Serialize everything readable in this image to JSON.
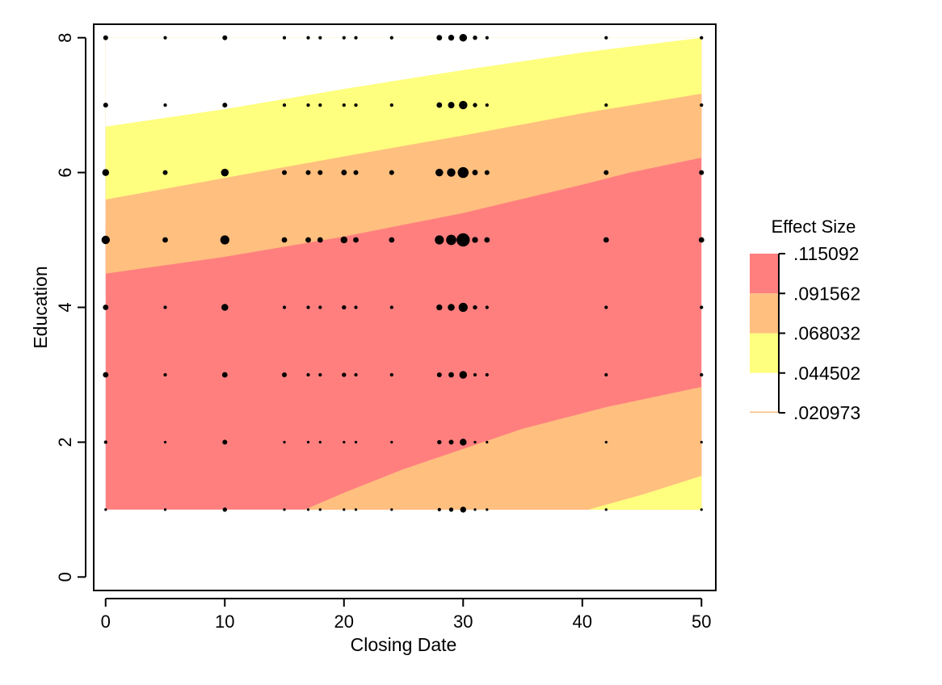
{
  "chart_data": {
    "type": "contour",
    "xlabel": "Closing Date",
    "ylabel": "Education",
    "xlim": [
      -1,
      51.2
    ],
    "ylim": [
      -0.2,
      8.2
    ],
    "xticks": [
      0,
      10,
      20,
      30,
      40,
      50
    ],
    "yticks": [
      0,
      2,
      4,
      6,
      8
    ],
    "grid": false,
    "legend": {
      "title": "Effect Size",
      "placement": "right",
      "cutpoints": [
        ".115092",
        ".091562",
        ".068032",
        ".044502",
        ".020973"
      ],
      "colors": [
        "#ff7f7f",
        "#ffbf7f",
        "#ffff7f",
        "#ffffff"
      ]
    },
    "contour_bands": [
      {
        "range": [
          0.020973,
          0.044502
        ],
        "color": "#ffffff"
      },
      {
        "range": [
          0.044502,
          0.068032
        ],
        "color": "#ffff7f"
      },
      {
        "range": [
          0.068032,
          0.091562
        ],
        "color": "#ffbf7f"
      },
      {
        "range": [
          0.091562,
          0.115092
        ],
        "color": "#ff7f7f"
      }
    ],
    "contour_lines": {
      "upper_044502": [
        [
          0,
          6.68
        ],
        [
          10,
          6.94
        ],
        [
          20,
          7.24
        ],
        [
          30,
          7.52
        ],
        [
          40,
          7.78
        ],
        [
          50,
          8.0
        ]
      ],
      "upper_068032": [
        [
          0,
          5.6
        ],
        [
          10,
          5.92
        ],
        [
          20,
          6.24
        ],
        [
          30,
          6.55
        ],
        [
          40,
          6.88
        ],
        [
          50,
          7.17
        ]
      ],
      "upper_091562": [
        [
          0,
          4.5
        ],
        [
          10,
          4.75
        ],
        [
          20,
          5.05
        ],
        [
          30,
          5.4
        ],
        [
          40,
          5.82
        ],
        [
          44,
          6.0
        ],
        [
          50,
          6.22
        ]
      ],
      "lower_091562": [
        [
          16.7,
          1.0
        ],
        [
          20,
          1.25
        ],
        [
          25,
          1.6
        ],
        [
          30,
          1.9
        ],
        [
          35,
          2.2
        ],
        [
          42,
          2.52
        ],
        [
          50,
          2.82
        ]
      ],
      "lower_068032": [
        [
          40.5,
          1.0
        ],
        [
          45,
          1.22
        ],
        [
          50,
          1.5
        ]
      ]
    },
    "points": [
      {
        "x": 0,
        "y": 8,
        "size": 1
      },
      {
        "x": 5,
        "y": 8,
        "size": 0.5
      },
      {
        "x": 10,
        "y": 8,
        "size": 1
      },
      {
        "x": 15,
        "y": 8,
        "size": 0.5
      },
      {
        "x": 17,
        "y": 8,
        "size": 0.5
      },
      {
        "x": 18,
        "y": 8,
        "size": 0.5
      },
      {
        "x": 20,
        "y": 8,
        "size": 0.5
      },
      {
        "x": 21,
        "y": 8,
        "size": 0.5
      },
      {
        "x": 24,
        "y": 8,
        "size": 0.5
      },
      {
        "x": 28,
        "y": 8,
        "size": 1.3
      },
      {
        "x": 29,
        "y": 8,
        "size": 1.5
      },
      {
        "x": 30,
        "y": 8,
        "size": 2.5
      },
      {
        "x": 31,
        "y": 8,
        "size": 0.8
      },
      {
        "x": 32,
        "y": 8,
        "size": 0.5
      },
      {
        "x": 42,
        "y": 8,
        "size": 0.5
      },
      {
        "x": 50,
        "y": 8,
        "size": 0.5
      },
      {
        "x": 0,
        "y": 7,
        "size": 1
      },
      {
        "x": 5,
        "y": 7,
        "size": 0.5
      },
      {
        "x": 10,
        "y": 7,
        "size": 1
      },
      {
        "x": 15,
        "y": 7,
        "size": 0.5
      },
      {
        "x": 17,
        "y": 7,
        "size": 0.5
      },
      {
        "x": 18,
        "y": 7,
        "size": 0.5
      },
      {
        "x": 20,
        "y": 7,
        "size": 0.5
      },
      {
        "x": 21,
        "y": 7,
        "size": 0.5
      },
      {
        "x": 24,
        "y": 7,
        "size": 0.5
      },
      {
        "x": 28,
        "y": 7,
        "size": 1.3
      },
      {
        "x": 29,
        "y": 7,
        "size": 1.8
      },
      {
        "x": 30,
        "y": 7,
        "size": 3
      },
      {
        "x": 31,
        "y": 7,
        "size": 0.8
      },
      {
        "x": 32,
        "y": 7,
        "size": 0.5
      },
      {
        "x": 42,
        "y": 7,
        "size": 0.5
      },
      {
        "x": 50,
        "y": 7,
        "size": 0.5
      },
      {
        "x": 0,
        "y": 6,
        "size": 2
      },
      {
        "x": 5,
        "y": 6,
        "size": 1
      },
      {
        "x": 10,
        "y": 6,
        "size": 2.5
      },
      {
        "x": 15,
        "y": 6,
        "size": 1
      },
      {
        "x": 17,
        "y": 6,
        "size": 1
      },
      {
        "x": 18,
        "y": 6,
        "size": 1
      },
      {
        "x": 20,
        "y": 6,
        "size": 1.3
      },
      {
        "x": 21,
        "y": 6,
        "size": 1
      },
      {
        "x": 24,
        "y": 6,
        "size": 1
      },
      {
        "x": 28,
        "y": 6,
        "size": 2.5
      },
      {
        "x": 29,
        "y": 6,
        "size": 3
      },
      {
        "x": 30,
        "y": 6,
        "size": 5
      },
      {
        "x": 31,
        "y": 6,
        "size": 1.3
      },
      {
        "x": 32,
        "y": 6,
        "size": 1
      },
      {
        "x": 42,
        "y": 6,
        "size": 1
      },
      {
        "x": 50,
        "y": 6,
        "size": 1
      },
      {
        "x": 0,
        "y": 5,
        "size": 3
      },
      {
        "x": 5,
        "y": 5,
        "size": 1.3
      },
      {
        "x": 10,
        "y": 5,
        "size": 3.5
      },
      {
        "x": 15,
        "y": 5,
        "size": 1.3
      },
      {
        "x": 17,
        "y": 5,
        "size": 1.3
      },
      {
        "x": 18,
        "y": 5,
        "size": 1.3
      },
      {
        "x": 20,
        "y": 5,
        "size": 2
      },
      {
        "x": 21,
        "y": 5,
        "size": 1.3
      },
      {
        "x": 24,
        "y": 5,
        "size": 1.3
      },
      {
        "x": 28,
        "y": 5,
        "size": 3.5
      },
      {
        "x": 29,
        "y": 5,
        "size": 4.5
      },
      {
        "x": 30,
        "y": 5,
        "size": 7.5
      },
      {
        "x": 31,
        "y": 5,
        "size": 1.5
      },
      {
        "x": 32,
        "y": 5,
        "size": 1.3
      },
      {
        "x": 42,
        "y": 5,
        "size": 1.3
      },
      {
        "x": 50,
        "y": 5,
        "size": 1.3
      },
      {
        "x": 0,
        "y": 4,
        "size": 1.3
      },
      {
        "x": 5,
        "y": 4,
        "size": 0.5
      },
      {
        "x": 10,
        "y": 4,
        "size": 2
      },
      {
        "x": 15,
        "y": 4,
        "size": 0.5
      },
      {
        "x": 17,
        "y": 4,
        "size": 0.5
      },
      {
        "x": 18,
        "y": 4,
        "size": 0.5
      },
      {
        "x": 20,
        "y": 4,
        "size": 0.8
      },
      {
        "x": 21,
        "y": 4,
        "size": 0.5
      },
      {
        "x": 24,
        "y": 4,
        "size": 0.5
      },
      {
        "x": 28,
        "y": 4,
        "size": 1.5
      },
      {
        "x": 29,
        "y": 4,
        "size": 2
      },
      {
        "x": 30,
        "y": 4,
        "size": 3.5
      },
      {
        "x": 31,
        "y": 4,
        "size": 0.8
      },
      {
        "x": 32,
        "y": 4,
        "size": 0.5
      },
      {
        "x": 42,
        "y": 4,
        "size": 0.5
      },
      {
        "x": 50,
        "y": 4,
        "size": 0.5
      },
      {
        "x": 0,
        "y": 3,
        "size": 1.3
      },
      {
        "x": 5,
        "y": 3,
        "size": 0.5
      },
      {
        "x": 10,
        "y": 3,
        "size": 1.3
      },
      {
        "x": 15,
        "y": 3,
        "size": 1
      },
      {
        "x": 17,
        "y": 3,
        "size": 0.5
      },
      {
        "x": 18,
        "y": 3,
        "size": 0.5
      },
      {
        "x": 20,
        "y": 3,
        "size": 0.8
      },
      {
        "x": 21,
        "y": 3,
        "size": 0.5
      },
      {
        "x": 24,
        "y": 3,
        "size": 0.5
      },
      {
        "x": 28,
        "y": 3,
        "size": 1
      },
      {
        "x": 29,
        "y": 3,
        "size": 1.3
      },
      {
        "x": 30,
        "y": 3,
        "size": 2.5
      },
      {
        "x": 31,
        "y": 3,
        "size": 0.5
      },
      {
        "x": 32,
        "y": 3,
        "size": 0.5
      },
      {
        "x": 42,
        "y": 3,
        "size": 0.5
      },
      {
        "x": 50,
        "y": 3,
        "size": 0.5
      },
      {
        "x": 0,
        "y": 2,
        "size": 0.5
      },
      {
        "x": 5,
        "y": 2,
        "size": 0.3
      },
      {
        "x": 10,
        "y": 2,
        "size": 1
      },
      {
        "x": 15,
        "y": 2,
        "size": 0.3
      },
      {
        "x": 17,
        "y": 2,
        "size": 0.3
      },
      {
        "x": 18,
        "y": 2,
        "size": 0.3
      },
      {
        "x": 20,
        "y": 2,
        "size": 0.3
      },
      {
        "x": 21,
        "y": 2,
        "size": 0.3
      },
      {
        "x": 24,
        "y": 2,
        "size": 0.3
      },
      {
        "x": 28,
        "y": 2,
        "size": 0.8
      },
      {
        "x": 29,
        "y": 2,
        "size": 1
      },
      {
        "x": 30,
        "y": 2,
        "size": 2
      },
      {
        "x": 31,
        "y": 2,
        "size": 0.3
      },
      {
        "x": 32,
        "y": 2,
        "size": 0.3
      },
      {
        "x": 42,
        "y": 2,
        "size": 0.3
      },
      {
        "x": 50,
        "y": 2,
        "size": 0.3
      },
      {
        "x": 0,
        "y": 1,
        "size": 0.3
      },
      {
        "x": 5,
        "y": 1,
        "size": 0.3
      },
      {
        "x": 10,
        "y": 1,
        "size": 0.8
      },
      {
        "x": 15,
        "y": 1,
        "size": 0.3
      },
      {
        "x": 17,
        "y": 1,
        "size": 0.3
      },
      {
        "x": 18,
        "y": 1,
        "size": 0.3
      },
      {
        "x": 20,
        "y": 1,
        "size": 0.3
      },
      {
        "x": 21,
        "y": 1,
        "size": 0.3
      },
      {
        "x": 24,
        "y": 1,
        "size": 0.3
      },
      {
        "x": 28,
        "y": 1,
        "size": 0.5
      },
      {
        "x": 29,
        "y": 1,
        "size": 0.8
      },
      {
        "x": 30,
        "y": 1,
        "size": 1.5
      },
      {
        "x": 31,
        "y": 1,
        "size": 0.3
      },
      {
        "x": 32,
        "y": 1,
        "size": 0.3
      },
      {
        "x": 42,
        "y": 1,
        "size": 0.3
      },
      {
        "x": 50,
        "y": 1,
        "size": 0.3
      }
    ]
  }
}
